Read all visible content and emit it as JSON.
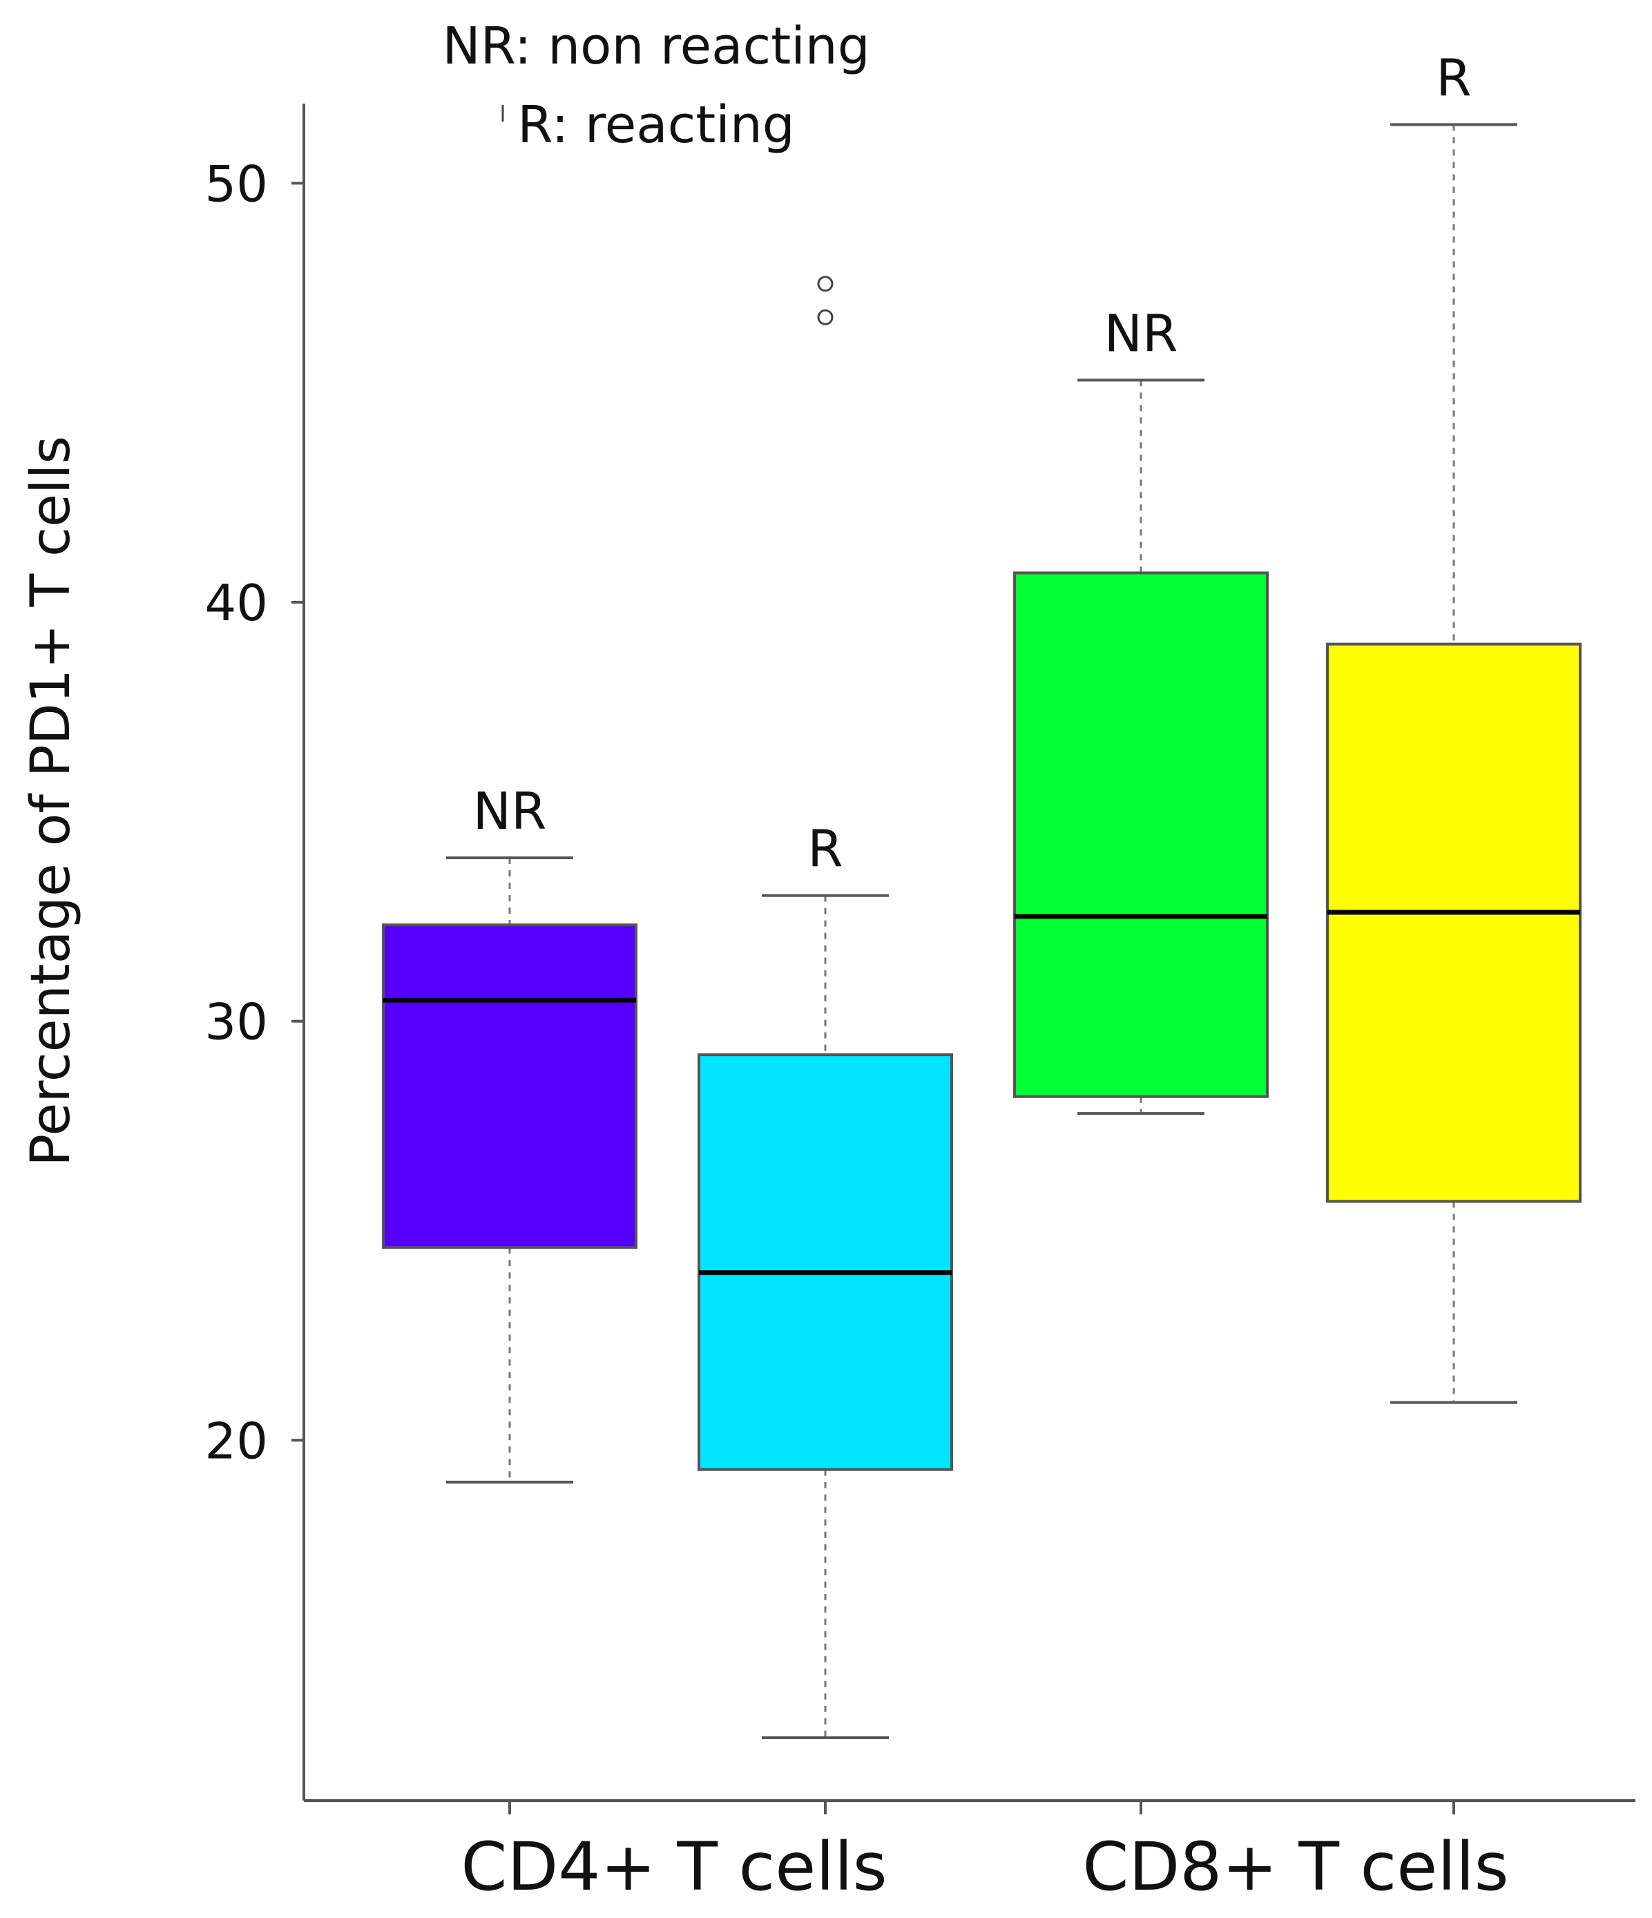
{
  "legend": {
    "line1": "NR: non reacting",
    "line2": "R: reacting"
  },
  "chart_data": {
    "type": "boxplot",
    "title": "",
    "xlabel": "",
    "ylabel": "Percentage of PD1+ T cells",
    "ylim": [
      11.4,
      51.9
    ],
    "yticks": [
      20,
      30,
      40,
      50
    ],
    "categories": [
      "CD4+ T cells",
      "CD8+ T cells"
    ],
    "grid": false,
    "boxes": [
      {
        "category": "CD4+ T cells",
        "group": "NR",
        "color": "#5500ff",
        "whisker_low": 19.0,
        "q1": 24.6,
        "median": 30.5,
        "q3": 32.3,
        "whisker_high": 33.9,
        "outliers": []
      },
      {
        "category": "CD4+ T cells",
        "group": "R",
        "color": "#00e5ff",
        "whisker_low": 12.9,
        "q1": 19.3,
        "median": 24.0,
        "q3": 29.2,
        "whisker_high": 33.0,
        "outliers": [
          46.8,
          47.6
        ]
      },
      {
        "category": "CD8+ T cells",
        "group": "NR",
        "color": "#00ff33",
        "whisker_low": 27.8,
        "q1": 28.2,
        "median": 32.5,
        "q3": 40.7,
        "whisker_high": 45.3,
        "outliers": []
      },
      {
        "category": "CD8+ T cells",
        "group": "R",
        "color": "#ffff00",
        "whisker_low": 20.9,
        "q1": 25.7,
        "median": 32.6,
        "q3": 39.0,
        "whisker_high": 51.4,
        "outliers": []
      }
    ]
  }
}
